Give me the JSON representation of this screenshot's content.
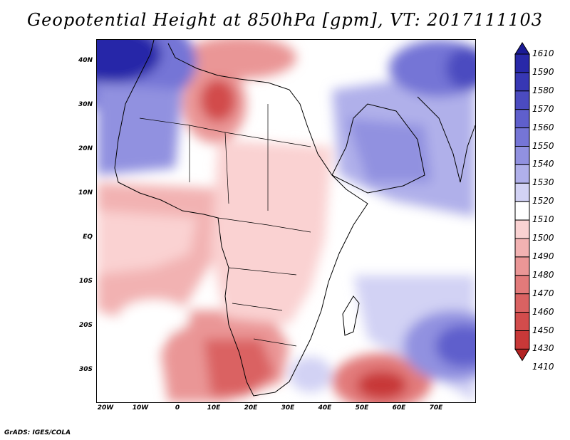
{
  "title": "Geopotential Height at 850hPa [gpm], VT: 2017111103",
  "credit": "GrADS: IGES/COLA",
  "axes": {
    "lat_labels": [
      "40N",
      "30N",
      "20N",
      "10N",
      "EQ",
      "10S",
      "20S",
      "30S"
    ],
    "lon_labels": [
      "20W",
      "10W",
      "0",
      "10E",
      "20E",
      "30E",
      "40E",
      "50E",
      "60E",
      "70E"
    ]
  },
  "map_extent": {
    "lon_range": [
      -21,
      80
    ],
    "lat_range": [
      -36,
      45
    ]
  },
  "legend": {
    "levels": [
      {
        "label": "1610",
        "color": "#1a1a96"
      },
      {
        "label": "1590",
        "color": "#2828a8"
      },
      {
        "label": "1580",
        "color": "#3737b4"
      },
      {
        "label": "1570",
        "color": "#4b4bc0"
      },
      {
        "label": "1560",
        "color": "#5f5fcc"
      },
      {
        "label": "1550",
        "color": "#7575d6"
      },
      {
        "label": "1540",
        "color": "#9191e0"
      },
      {
        "label": "1530",
        "color": "#b0b0ea"
      },
      {
        "label": "1520",
        "color": "#d2d2f4"
      },
      {
        "label": "1510",
        "color": "#ffffff"
      },
      {
        "label": "1500",
        "color": "#fad2d2"
      },
      {
        "label": "1490",
        "color": "#f2b2b2"
      },
      {
        "label": "1480",
        "color": "#ea9696"
      },
      {
        "label": "1470",
        "color": "#e27a7a"
      },
      {
        "label": "1460",
        "color": "#da6262"
      },
      {
        "label": "1450",
        "color": "#d24c4c"
      },
      {
        "label": "1430",
        "color": "#c83838"
      },
      {
        "label": "1410",
        "color": "#b22222"
      }
    ]
  }
}
